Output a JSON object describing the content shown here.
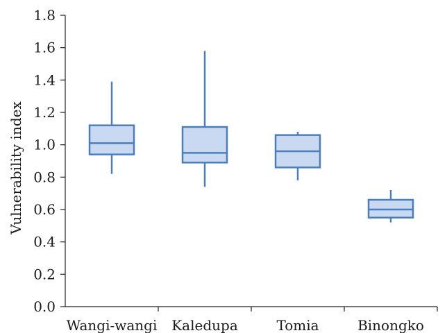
{
  "chart_data": {
    "type": "boxplot",
    "title": "",
    "xlabel": "",
    "ylabel": "Vulnerability index",
    "ylim": [
      0,
      1.8
    ],
    "yticks": [
      "0.0",
      "0.2",
      "0.4",
      "0.6",
      "0.8",
      "1.0",
      "1.2",
      "1.4",
      "1.6",
      "1.8"
    ],
    "grid": false,
    "legend": "none",
    "categories": [
      "Wangi-wangi",
      "Kaledupa",
      "Tomia",
      "Binongko"
    ],
    "boxes": [
      {
        "category": "Wangi-wangi",
        "min": 0.82,
        "q1": 0.94,
        "median": 1.01,
        "q3": 1.12,
        "max": 1.39
      },
      {
        "category": "Kaledupa",
        "min": 0.74,
        "q1": 0.89,
        "median": 0.95,
        "q3": 1.11,
        "max": 1.58
      },
      {
        "category": "Tomia",
        "min": 0.78,
        "q1": 0.86,
        "median": 0.96,
        "q3": 1.06,
        "max": 1.08
      },
      {
        "category": "Binongko",
        "min": 0.52,
        "q1": 0.55,
        "median": 0.6,
        "q3": 0.66,
        "max": 0.72
      }
    ],
    "colors": {
      "box_fill": "#c9d9f1",
      "box_stroke": "#4a7ebb",
      "axis": "#222222"
    }
  }
}
